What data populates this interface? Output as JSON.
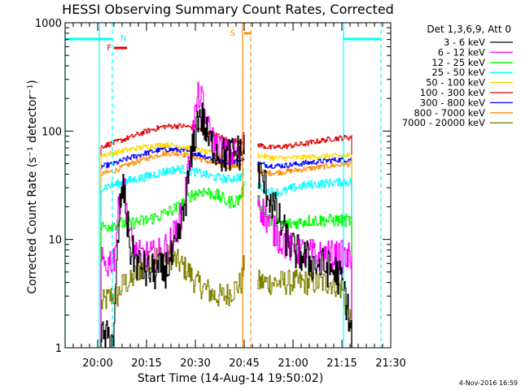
{
  "chart_data": {
    "type": "line",
    "title": "HESSI Observing Summary Count Rates, Corrected",
    "xlabel": "Start Time (14-Aug-14 19:50:02)",
    "ylabel": "Corrected Count Rate (s⁻¹ detector⁻¹)",
    "yscale": "log",
    "ylim": [
      1,
      1000
    ],
    "xlim_minutes": [
      -10,
      90
    ],
    "x_ticks": [
      {
        "label": "20:00",
        "t": 0
      },
      {
        "label": "20:15",
        "t": 15
      },
      {
        "label": "20:30",
        "t": 30
      },
      {
        "label": "20:45",
        "t": 45
      },
      {
        "label": "21:00",
        "t": 60
      },
      {
        "label": "21:15",
        "t": 75
      },
      {
        "label": "21:30",
        "t": 90
      }
    ],
    "y_ticks": [
      {
        "label": "1",
        "v": 1
      },
      {
        "label": "10",
        "v": 10
      },
      {
        "label": "100",
        "v": 100
      },
      {
        "label": "1000",
        "v": 1000
      }
    ],
    "legend_header": "Det 1,3,6,9, Att 0",
    "legend_position": "right",
    "footer_date": "4-Nov-2016 16:59",
    "flags": {
      "night": {
        "label": "N",
        "color": "#00ffff",
        "segments": [
          [
            -10,
            4.5
          ],
          [
            75.5,
            87
          ]
        ]
      },
      "flare": {
        "label": "F",
        "color": "#e00000",
        "segments": [
          [
            5,
            9
          ]
        ]
      },
      "saa": {
        "label": "S",
        "color": "#ff8c00",
        "segments": [
          [
            45,
            47
          ]
        ]
      }
    },
    "markers": [
      {
        "t": -10,
        "color": "#00ffff",
        "style": "solid"
      },
      {
        "t": 0.5,
        "color": "#00ffff",
        "style": "solid"
      },
      {
        "t": 4.5,
        "color": "#00ffff",
        "style": "dashed"
      },
      {
        "t": 44.5,
        "color": "#ff8c00",
        "style": "solid"
      },
      {
        "t": 47,
        "color": "#ff8c00",
        "style": "dashed"
      },
      {
        "t": 75.5,
        "color": "#00ffff",
        "style": "solid"
      },
      {
        "t": 87,
        "color": "#00ffff",
        "style": "dashed"
      }
    ],
    "data_gap": [
      45,
      49
    ],
    "series": [
      {
        "name": "3 - 6 keV",
        "color": "#000000",
        "noise": 0.18,
        "points": [
          [
            1,
            1.2
          ],
          [
            3,
            1.2
          ],
          [
            5,
            1.3
          ],
          [
            6,
            8
          ],
          [
            7,
            25
          ],
          [
            8,
            28
          ],
          [
            9,
            14
          ],
          [
            10,
            8
          ],
          [
            12,
            6
          ],
          [
            15,
            5
          ],
          [
            18,
            5
          ],
          [
            20,
            5
          ],
          [
            22,
            6
          ],
          [
            24,
            8
          ],
          [
            26,
            15
          ],
          [
            28,
            40
          ],
          [
            30,
            100
          ],
          [
            31,
            150
          ],
          [
            32,
            130
          ],
          [
            34,
            80
          ],
          [
            36,
            70
          ],
          [
            38,
            60
          ],
          [
            40,
            60
          ],
          [
            42,
            62
          ],
          [
            44,
            65
          ],
          [
            45,
            70
          ],
          [
            49,
            45
          ],
          [
            50,
            38
          ],
          [
            52,
            28
          ],
          [
            54,
            20
          ],
          [
            56,
            14
          ],
          [
            58,
            10
          ],
          [
            60,
            8
          ],
          [
            63,
            7
          ],
          [
            66,
            6
          ],
          [
            70,
            5.5
          ],
          [
            73,
            5
          ],
          [
            75,
            4
          ],
          [
            76,
            3
          ],
          [
            77,
            2
          ],
          [
            78,
            1.2
          ]
        ]
      },
      {
        "name": "6 - 12 keV",
        "color": "#ff00ff",
        "noise": 0.15,
        "points": [
          [
            1,
            6
          ],
          [
            3,
            6
          ],
          [
            5,
            7
          ],
          [
            6,
            15
          ],
          [
            7,
            28
          ],
          [
            8,
            32
          ],
          [
            9,
            16
          ],
          [
            10,
            10
          ],
          [
            12,
            7
          ],
          [
            15,
            7
          ],
          [
            18,
            7
          ],
          [
            20,
            8
          ],
          [
            22,
            9
          ],
          [
            24,
            12
          ],
          [
            26,
            18
          ],
          [
            28,
            50
          ],
          [
            30,
            150
          ],
          [
            31,
            220
          ],
          [
            32,
            180
          ],
          [
            34,
            100
          ],
          [
            36,
            75
          ],
          [
            38,
            65
          ],
          [
            40,
            60
          ],
          [
            42,
            63
          ],
          [
            44,
            65
          ],
          [
            45,
            75
          ],
          [
            49,
            25
          ],
          [
            50,
            20
          ],
          [
            52,
            15
          ],
          [
            54,
            12
          ],
          [
            56,
            10
          ],
          [
            58,
            9
          ],
          [
            60,
            8
          ],
          [
            64,
            7.5
          ],
          [
            68,
            7
          ],
          [
            72,
            7
          ],
          [
            75,
            7
          ],
          [
            76,
            6.5
          ],
          [
            78,
            7
          ]
        ]
      },
      {
        "name": "12 - 25 keV",
        "color": "#00ff00",
        "noise": 0.06,
        "points": [
          [
            1,
            13
          ],
          [
            6,
            14
          ],
          [
            10,
            14
          ],
          [
            15,
            15
          ],
          [
            20,
            17
          ],
          [
            25,
            20
          ],
          [
            28,
            25
          ],
          [
            32,
            28
          ],
          [
            36,
            26
          ],
          [
            40,
            22
          ],
          [
            43,
            23
          ],
          [
            45,
            30
          ],
          [
            49,
            25
          ],
          [
            51,
            18
          ],
          [
            53,
            15
          ],
          [
            56,
            14
          ],
          [
            60,
            14
          ],
          [
            65,
            15
          ],
          [
            70,
            15
          ],
          [
            75,
            15
          ],
          [
            78,
            15
          ]
        ]
      },
      {
        "name": "25 - 50 keV",
        "color": "#00ffff",
        "noise": 0.04,
        "points": [
          [
            1,
            30
          ],
          [
            5,
            32
          ],
          [
            10,
            35
          ],
          [
            15,
            38
          ],
          [
            20,
            42
          ],
          [
            25,
            45
          ],
          [
            30,
            42
          ],
          [
            35,
            38
          ],
          [
            40,
            36
          ],
          [
            44,
            38
          ],
          [
            45,
            42
          ],
          [
            49,
            32
          ],
          [
            52,
            28
          ],
          [
            56,
            27
          ],
          [
            60,
            30
          ],
          [
            65,
            32
          ],
          [
            70,
            33
          ],
          [
            75,
            34
          ],
          [
            78,
            34
          ]
        ]
      },
      {
        "name": "50 - 100 keV",
        "color": "#ffd700",
        "noise": 0.025,
        "points": [
          [
            1,
            60
          ],
          [
            5,
            63
          ],
          [
            10,
            68
          ],
          [
            15,
            72
          ],
          [
            20,
            75
          ],
          [
            25,
            73
          ],
          [
            30,
            68
          ],
          [
            35,
            62
          ],
          [
            40,
            58
          ],
          [
            44,
            60
          ],
          [
            45,
            68
          ],
          [
            49,
            60
          ],
          [
            53,
            57
          ],
          [
            57,
            56
          ],
          [
            62,
            57
          ],
          [
            67,
            58
          ],
          [
            72,
            59
          ],
          [
            78,
            59
          ]
        ]
      },
      {
        "name": "100 - 300 keV",
        "color": "#e00000",
        "noise": 0.025,
        "points": [
          [
            1,
            72
          ],
          [
            5,
            78
          ],
          [
            10,
            88
          ],
          [
            15,
            100
          ],
          [
            20,
            110
          ],
          [
            25,
            112
          ],
          [
            30,
            108
          ],
          [
            35,
            95
          ],
          [
            40,
            82
          ],
          [
            44,
            80
          ],
          [
            45,
            95
          ],
          [
            49,
            75
          ],
          [
            53,
            70
          ],
          [
            57,
            72
          ],
          [
            62,
            75
          ],
          [
            67,
            80
          ],
          [
            72,
            85
          ],
          [
            78,
            88
          ]
        ]
      },
      {
        "name": "300 - 800 keV",
        "color": "#0000ff",
        "noise": 0.025,
        "points": [
          [
            1,
            47
          ],
          [
            5,
            50
          ],
          [
            10,
            57
          ],
          [
            15,
            63
          ],
          [
            20,
            68
          ],
          [
            25,
            67
          ],
          [
            30,
            62
          ],
          [
            35,
            56
          ],
          [
            40,
            52
          ],
          [
            44,
            53
          ],
          [
            45,
            58
          ],
          [
            49,
            50
          ],
          [
            53,
            48
          ],
          [
            57,
            48
          ],
          [
            62,
            50
          ],
          [
            67,
            52
          ],
          [
            72,
            54
          ],
          [
            78,
            55
          ]
        ]
      },
      {
        "name": "800 - 7000 keV",
        "color": "#ff8c00",
        "noise": 0.025,
        "points": [
          [
            1,
            40
          ],
          [
            5,
            43
          ],
          [
            10,
            50
          ],
          [
            15,
            56
          ],
          [
            20,
            62
          ],
          [
            25,
            62
          ],
          [
            30,
            57
          ],
          [
            35,
            51
          ],
          [
            40,
            47
          ],
          [
            44,
            48
          ],
          [
            45,
            53
          ],
          [
            49,
            42
          ],
          [
            53,
            41
          ],
          [
            57,
            42
          ],
          [
            62,
            44
          ],
          [
            67,
            46
          ],
          [
            72,
            48
          ],
          [
            78,
            50
          ]
        ]
      },
      {
        "name": "7000 - 20000 keV",
        "color": "#808000",
        "noise": 0.12,
        "points": [
          [
            1,
            2.5
          ],
          [
            4,
            3
          ],
          [
            6,
            3
          ],
          [
            8,
            4
          ],
          [
            10,
            4
          ],
          [
            12,
            5
          ],
          [
            15,
            6
          ],
          [
            18,
            7
          ],
          [
            20,
            7
          ],
          [
            22,
            7
          ],
          [
            25,
            6
          ],
          [
            28,
            5
          ],
          [
            30,
            4
          ],
          [
            33,
            3.5
          ],
          [
            36,
            3
          ],
          [
            39,
            3
          ],
          [
            42,
            3.5
          ],
          [
            44,
            4
          ],
          [
            45,
            6
          ],
          [
            49,
            4
          ],
          [
            53,
            4
          ],
          [
            56,
            4
          ],
          [
            60,
            4
          ],
          [
            64,
            4
          ],
          [
            68,
            4
          ],
          [
            72,
            4
          ],
          [
            75,
            3.5
          ],
          [
            76,
            2.5
          ],
          [
            78,
            1.5
          ]
        ]
      }
    ]
  }
}
